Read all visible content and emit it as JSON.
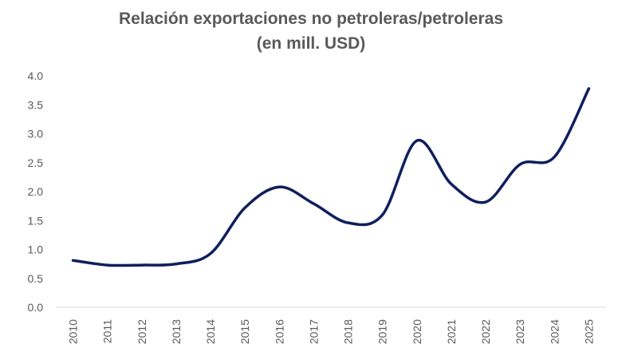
{
  "chart_data": {
    "type": "line",
    "title_line1": "Relación exportaciones no petroleras/petroleras",
    "title_line2": "(en mill. USD)",
    "xlabel": "",
    "ylabel": "",
    "categories": [
      "2010",
      "2011",
      "2012",
      "2013",
      "2014",
      "2015",
      "2016",
      "2017",
      "2018",
      "2019",
      "2020",
      "2021",
      "2022",
      "2023",
      "2024",
      "2025"
    ],
    "series": [
      {
        "name": "Relación",
        "values": [
          0.81,
          0.73,
          0.73,
          0.75,
          0.93,
          1.72,
          2.08,
          1.79,
          1.46,
          1.6,
          2.88,
          2.13,
          1.82,
          2.47,
          2.6,
          3.78
        ]
      }
    ],
    "yticks": [
      "0.0",
      "0.5",
      "1.0",
      "1.5",
      "2.0",
      "2.5",
      "3.0",
      "3.5",
      "4.0"
    ],
    "ylim": [
      0,
      4
    ],
    "grid": false,
    "line_color": "#0f1f5c",
    "text_color": "#595959"
  }
}
